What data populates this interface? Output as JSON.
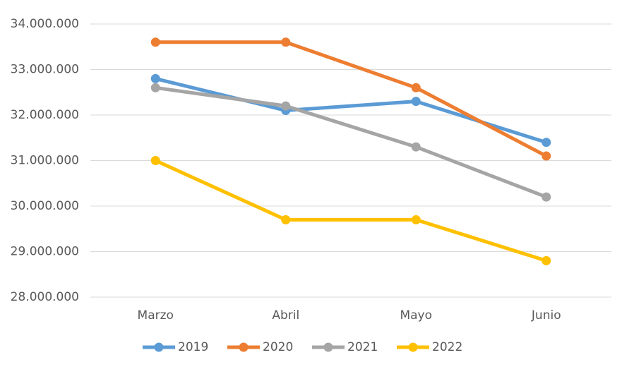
{
  "chart_data": {
    "type": "line",
    "categories": [
      "Marzo",
      "Abril",
      "Mayo",
      "Junio"
    ],
    "series": [
      {
        "name": "2019",
        "color": "#5b9bd5",
        "values": [
          32800000,
          32100000,
          32300000,
          31400000
        ]
      },
      {
        "name": "2020",
        "color": "#ed7d31",
        "values": [
          33600000,
          33600000,
          32600000,
          31100000
        ]
      },
      {
        "name": "2021",
        "color": "#a5a5a5",
        "values": [
          32600000,
          32200000,
          31300000,
          30200000
        ]
      },
      {
        "name": "2022",
        "color": "#ffc000",
        "values": [
          31000000,
          29700000,
          29700000,
          28800000
        ]
      }
    ],
    "ylim": [
      28000000,
      34000000
    ],
    "yticks": [
      {
        "value": 28000000,
        "label": "28.000.000"
      },
      {
        "value": 29000000,
        "label": "29.000.000"
      },
      {
        "value": 30000000,
        "label": "30.000.000"
      },
      {
        "value": 31000000,
        "label": "31.000.000"
      },
      {
        "value": 32000000,
        "label": "32.000.000"
      },
      {
        "value": 33000000,
        "label": "33.000.000"
      },
      {
        "value": 34000000,
        "label": "34.000.000"
      }
    ],
    "grid": true,
    "legend": "bottom"
  }
}
